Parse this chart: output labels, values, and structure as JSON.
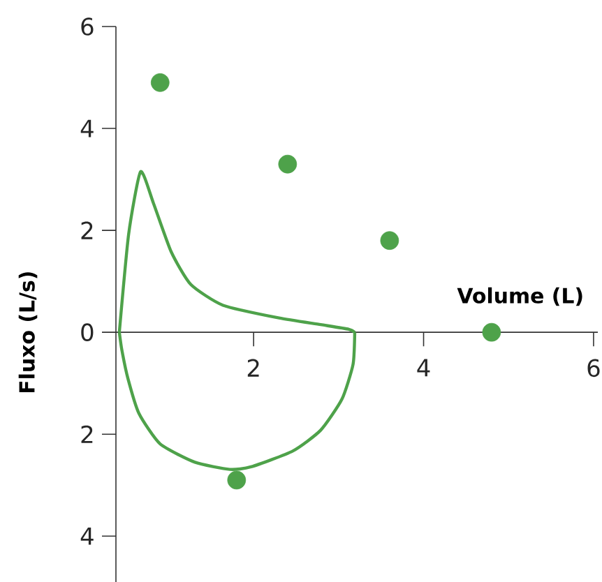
{
  "chart_data": {
    "type": "line",
    "xlabel": "Volume (L)",
    "ylabel": "Fluxo (L/s)",
    "xlim": [
      0.38,
      6.05
    ],
    "ylim": [
      -4.9,
      6
    ],
    "xticks": [
      2,
      4,
      6
    ],
    "yticks": [
      {
        "value": -4,
        "label": "4"
      },
      {
        "value": -2,
        "label": "2"
      },
      0,
      2,
      4,
      6
    ],
    "series": [
      {
        "color": "#4ea24a",
        "marker": "none",
        "x": [
          0.42,
          0.53,
          0.67,
          0.82,
          1.03,
          1.26,
          1.64,
          2.3,
          2.79,
          3.12,
          3.19
        ],
        "values": [
          0,
          1.93,
          3.15,
          2.54,
          1.58,
          0.94,
          0.53,
          0.28,
          0.15,
          0.06,
          0
        ]
      },
      {
        "color": "#4ea24a",
        "marker": "none",
        "x": [
          0.42,
          0.45,
          0.52,
          0.65,
          0.9,
          1.31,
          1.72,
          1.97,
          2.46,
          2.79,
          3.04,
          3.17,
          3.19
        ],
        "values": [
          0,
          -0.35,
          -0.9,
          -1.59,
          -2.19,
          -2.55,
          -2.69,
          -2.64,
          -2.33,
          -1.92,
          -1.31,
          -0.63,
          0
        ]
      },
      {
        "type": "scatter",
        "color": "#4ea24a",
        "marker": "circle",
        "x": [
          0.9,
          2.4,
          3.6,
          4.8,
          1.8
        ],
        "values": [
          4.9,
          3.3,
          1.8,
          0,
          -2.9
        ]
      }
    ]
  }
}
